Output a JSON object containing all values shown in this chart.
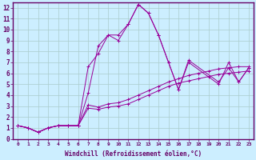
{
  "xlabel": "Windchill (Refroidissement éolien,°C)",
  "background_color": "#cceeff",
  "grid_color": "#aacccc",
  "line_color": "#990099",
  "xlim": [
    -0.5,
    23.5
  ],
  "ylim": [
    0,
    12.5
  ],
  "xticks": [
    0,
    1,
    2,
    3,
    4,
    5,
    6,
    7,
    8,
    9,
    10,
    11,
    12,
    13,
    14,
    15,
    16,
    17,
    18,
    19,
    20,
    21,
    22,
    23
  ],
  "yticks": [
    0,
    1,
    2,
    3,
    4,
    5,
    6,
    7,
    8,
    9,
    10,
    11,
    12
  ],
  "line1_x": [
    0,
    1,
    2,
    3,
    4,
    5,
    6,
    7,
    8,
    9,
    10,
    11,
    12,
    13,
    14,
    15,
    16,
    17,
    20,
    21,
    22,
    23
  ],
  "line1_y": [
    1.2,
    1.0,
    0.6,
    1.0,
    1.2,
    1.2,
    1.2,
    6.6,
    7.8,
    9.5,
    9.5,
    10.5,
    12.3,
    11.5,
    9.5,
    7.0,
    4.5,
    7.2,
    5.2,
    6.5,
    5.2,
    6.5
  ],
  "line2_x": [
    0,
    1,
    2,
    3,
    4,
    5,
    6,
    7,
    8,
    9,
    10,
    11,
    12,
    13,
    14,
    15,
    16,
    17,
    20,
    21,
    22,
    23
  ],
  "line2_y": [
    1.2,
    1.0,
    0.6,
    1.0,
    1.2,
    1.2,
    1.2,
    4.2,
    8.5,
    9.5,
    9.0,
    10.5,
    12.3,
    11.5,
    9.5,
    7.0,
    4.5,
    7.0,
    5.0,
    7.0,
    5.2,
    6.5
  ],
  "line3_x": [
    0,
    1,
    2,
    3,
    4,
    5,
    6,
    7,
    8,
    9,
    10,
    11,
    12,
    13,
    14,
    15,
    16,
    17,
    18,
    19,
    20,
    21,
    22,
    23
  ],
  "line3_y": [
    1.2,
    1.0,
    0.6,
    1.0,
    1.2,
    1.2,
    1.2,
    3.1,
    2.9,
    3.2,
    3.3,
    3.6,
    4.0,
    4.4,
    4.8,
    5.2,
    5.5,
    5.8,
    6.0,
    6.2,
    6.4,
    6.5,
    6.6,
    6.6
  ],
  "line4_x": [
    0,
    1,
    2,
    3,
    4,
    5,
    6,
    7,
    8,
    9,
    10,
    11,
    12,
    13,
    14,
    15,
    16,
    17,
    18,
    19,
    20,
    21,
    22,
    23
  ],
  "line4_y": [
    1.2,
    1.0,
    0.6,
    1.0,
    1.2,
    1.2,
    1.2,
    2.8,
    2.7,
    2.9,
    3.0,
    3.2,
    3.6,
    4.0,
    4.4,
    4.8,
    5.1,
    5.3,
    5.5,
    5.7,
    5.9,
    6.0,
    6.1,
    6.2
  ]
}
